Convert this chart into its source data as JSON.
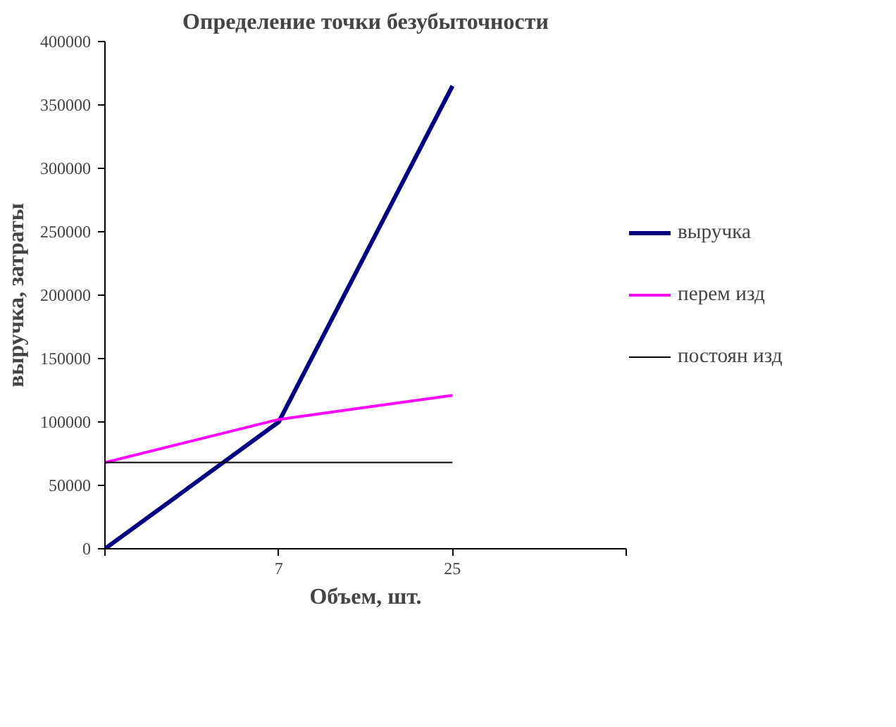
{
  "chart_data": {
    "type": "line",
    "title": "Определение точки безубыточности",
    "xlabel": "Объем, шт.",
    "ylabel": "выручка, затраты",
    "categories": [
      null,
      "7",
      "25",
      null
    ],
    "series": [
      {
        "name": "выручка",
        "color": "#000080",
        "values": [
          0,
          100000,
          365000,
          null
        ]
      },
      {
        "name": "перем изд",
        "color": "#ff00ff",
        "values": [
          68000,
          102000,
          121000,
          null
        ]
      },
      {
        "name": "постоян изд",
        "color": "#000000",
        "values": [
          68000,
          68000,
          68000,
          null
        ]
      }
    ],
    "ylim": [
      0,
      400000
    ],
    "yticks": [
      0,
      50000,
      100000,
      150000,
      200000,
      250000,
      300000,
      350000,
      400000
    ],
    "grid": false,
    "legend": "right"
  }
}
